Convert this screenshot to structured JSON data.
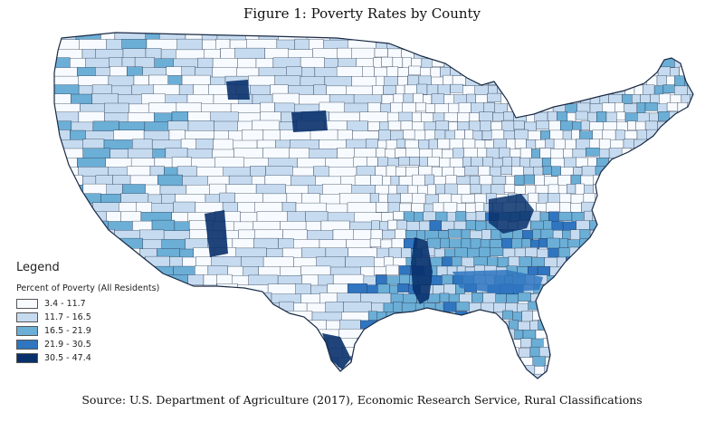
{
  "title": "Figure 1: Poverty Rates by County",
  "source": "Source: U.S. Department of Agriculture (2017), Economic Research Service, Rural Classifications",
  "legend": {
    "title": "Legend",
    "subtitle": "Percent of Poverty (All Residents)",
    "items": [
      {
        "label": "3.4 - 11.7",
        "color": "#f7fbff"
      },
      {
        "label": "11.7 - 16.5",
        "color": "#c6dbef"
      },
      {
        "label": "16.5 - 21.9",
        "color": "#6baed6"
      },
      {
        "label": "21.9 - 30.5",
        "color": "#2f75c0"
      },
      {
        "label": "30.5 - 47.4",
        "color": "#08306b"
      }
    ]
  },
  "colors": {
    "county_border": "#1a2a44",
    "background": "#ffffff"
  }
}
